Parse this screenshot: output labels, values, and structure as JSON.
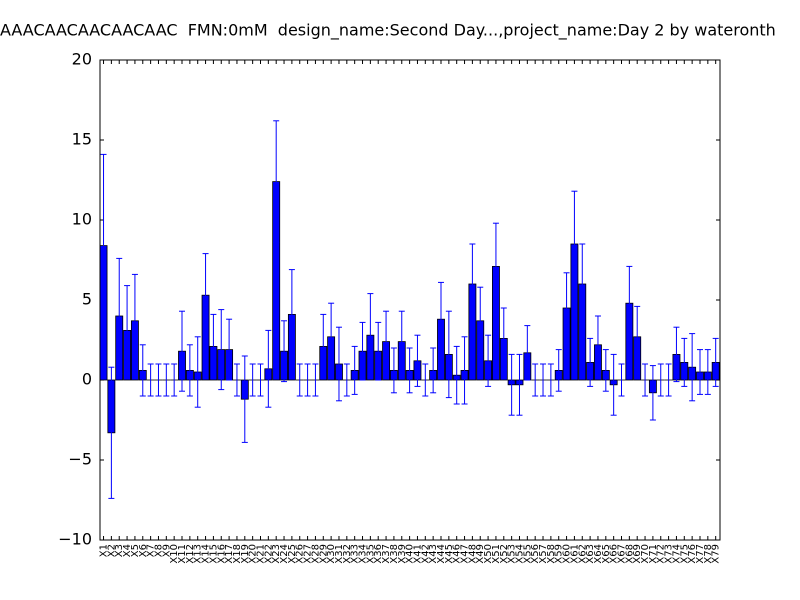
{
  "chart_data": {
    "type": "bar",
    "title": "AAACAACAACAACAAC  FMN:0mM  design_name:Second Day...,project_name:Day 2 by wateronth",
    "categories": [
      "X1",
      "X2",
      "X3",
      "X4",
      "X5",
      "X6",
      "X7",
      "X8",
      "X9",
      "X10",
      "X11",
      "X12",
      "X13",
      "X14",
      "X15",
      "X16",
      "X17",
      "X18",
      "X19",
      "X20",
      "X21",
      "X22",
      "X23",
      "X24",
      "X25",
      "X26",
      "X27",
      "X28",
      "X29",
      "X30",
      "X31",
      "X32",
      "X33",
      "X34",
      "X35",
      "X36",
      "X37",
      "X38",
      "X39",
      "X40",
      "X41",
      "X42",
      "X43",
      "X44",
      "X45",
      "X46",
      "X47",
      "X48",
      "X49",
      "X50",
      "X51",
      "X52",
      "X53",
      "X54",
      "X55",
      "X56",
      "X57",
      "X58",
      "X59",
      "X60",
      "X61",
      "X62",
      "X63",
      "X64",
      "X65",
      "X66",
      "X67",
      "X68",
      "X69",
      "X70",
      "X71",
      "X72",
      "X73",
      "X74",
      "X75",
      "X76",
      "X77",
      "X78",
      "X79"
    ],
    "series": [
      {
        "color": "#0000ff",
        "values": [
          8.4,
          -3.3,
          4.0,
          3.1,
          3.7,
          0.6,
          0,
          0,
          0,
          0,
          1.8,
          0.6,
          0.5,
          5.3,
          2.1,
          1.9,
          1.9,
          0,
          -1.2,
          0,
          0,
          0.7,
          12.4,
          1.8,
          4.1,
          0,
          0,
          0,
          2.1,
          2.7,
          1.0,
          0,
          0.6,
          1.8,
          2.8,
          1.8,
          2.4,
          0.6,
          2.4,
          0.6,
          1.2,
          0,
          0.6,
          3.8,
          1.6,
          0.3,
          0.6,
          6.0,
          3.7,
          1.2,
          7.1,
          2.6,
          -0.3,
          -0.3,
          1.7,
          0,
          0,
          0,
          0.6,
          4.5,
          8.5,
          6.0,
          1.1,
          2.2,
          0.6,
          -0.3,
          0,
          4.8,
          2.7,
          0,
          -0.8,
          0,
          0,
          1.6,
          1.1,
          0.8,
          0.5,
          0.5,
          1.1
        ],
        "errors": [
          5.7,
          4.1,
          3.6,
          2.8,
          2.9,
          1.6,
          1,
          1,
          1,
          1,
          2.5,
          1.6,
          2.2,
          2.6,
          2.0,
          2.5,
          1.9,
          1,
          2.7,
          1,
          1,
          2.4,
          3.8,
          1.9,
          2.8,
          1,
          1,
          1,
          2.0,
          2.1,
          2.3,
          1,
          1.5,
          1.8,
          2.6,
          1.8,
          1.9,
          1.4,
          1.9,
          1.4,
          1.6,
          1,
          1.4,
          2.3,
          2.7,
          1.8,
          2.1,
          2.5,
          2.1,
          1.6,
          2.7,
          1.9,
          1.9,
          1.9,
          1.7,
          1,
          1,
          1,
          1.3,
          2.2,
          3.3,
          2.5,
          1.5,
          1.8,
          1.3,
          1.9,
          1,
          2.3,
          1.9,
          1,
          1.7,
          1,
          1,
          1.7,
          1.5,
          2.1,
          1.4,
          1.4,
          1.5
        ]
      }
    ],
    "ylim": [
      -10,
      20
    ],
    "yticks": [
      {
        "value": -10,
        "label": "−10"
      },
      {
        "value": -5,
        "label": "−5"
      },
      0,
      5,
      10,
      15,
      20
    ]
  }
}
